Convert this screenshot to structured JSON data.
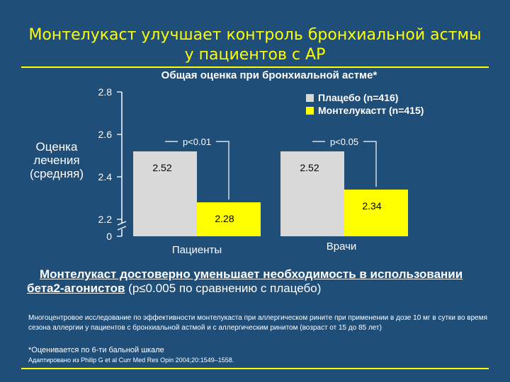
{
  "slide": {
    "title": "Монтелукаст улучшает контроль бронхиальной астмы у пациентов с АР",
    "conclusion_strong": "Монтелукаст достоверно уменьшает необходимость в использовании бета2-агонистов",
    "conclusion_rest": " (p≤0.005 по сравнению с плацебо)",
    "study_note": "Многоцентровое исследование по эффективности монтелукаста при аллергическом рините при применении в дозе 10 мг в сутки во время сезона аллергии у пациентов с бронхиальной астмой и с аллергическим ринитом (возраст от 15 до 85 лет)",
    "footnote": "*Оценивается по 6-ти бальной шкале",
    "source": "Адаптировано из Philip G et al Curr Med Res Opin 2004;20:1549–1558."
  },
  "colors": {
    "background": "#1f4e79",
    "title": "#ffff00",
    "placebo": "#d9d9d9",
    "montelukast": "#ffff00"
  },
  "chart_data": {
    "type": "bar",
    "title": "Общая оценка при бронхиальной астме*",
    "ylabel": "Оценка лечения (средняя)",
    "ylabel_lines": [
      "Оценка",
      "лечения",
      "(средняя)"
    ],
    "y_ticks": [
      "2.8",
      "2.6",
      "2.4",
      "2.2",
      "0"
    ],
    "ylim": [
      2.2,
      2.8
    ],
    "axis_break": true,
    "categories": [
      "Пациенты",
      "Врачи"
    ],
    "series": [
      {
        "name": "Плацебо (n=416)",
        "values": [
          2.52,
          2.52
        ],
        "labels": [
          "2.52",
          "2.52"
        ]
      },
      {
        "name": "Монтелукастт (n=415)",
        "values": [
          2.28,
          2.34
        ],
        "labels": [
          "2.28",
          "2.34"
        ]
      }
    ],
    "annotations": [
      "p<0.01",
      "p<0.05"
    ],
    "legend_position": "top-right"
  }
}
